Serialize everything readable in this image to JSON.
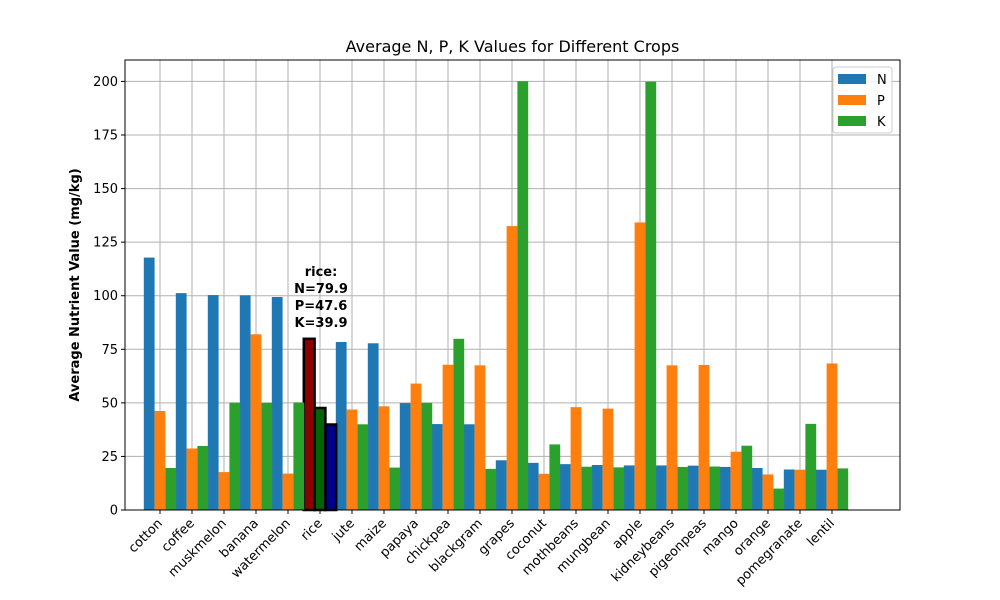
{
  "chart_data": {
    "type": "bar",
    "title": "Average N, P, K Values for Different Crops",
    "xlabel": "",
    "ylabel": "Average Nutrient Value (mg/kg)",
    "ylim": [
      0,
      210
    ],
    "yticks": [
      "0",
      "25",
      "50",
      "75",
      "100",
      "125",
      "150",
      "175",
      "200"
    ],
    "grid": true,
    "legend_position": "top-right",
    "categories": [
      "cotton",
      "coffee",
      "muskmelon",
      "banana",
      "watermelon",
      "rice",
      "jute",
      "maize",
      "papaya",
      "chickpea",
      "blackgram",
      "grapes",
      "coconut",
      "mothbeans",
      "mungbean",
      "apple",
      "kidneybeans",
      "pigeonpeas",
      "mango",
      "orange",
      "pomegranate",
      "lentil"
    ],
    "series": [
      {
        "name": "N",
        "color": "#1f77b4",
        "values": [
          117.8,
          101.2,
          100.3,
          100.2,
          99.4,
          79.9,
          78.4,
          77.8,
          49.9,
          40.1,
          40.0,
          23.2,
          22.0,
          21.4,
          21.0,
          20.8,
          20.8,
          20.7,
          20.1,
          19.6,
          18.9,
          18.8
        ]
      },
      {
        "name": "P",
        "color": "#ff7f0e",
        "values": [
          46.2,
          28.7,
          17.7,
          82.0,
          17.0,
          47.6,
          46.9,
          48.4,
          59.0,
          67.8,
          67.5,
          132.5,
          16.9,
          48.0,
          47.3,
          134.2,
          67.5,
          67.7,
          27.2,
          16.6,
          18.8,
          68.4
        ]
      },
      {
        "name": "K",
        "color": "#2ca02c",
        "values": [
          19.6,
          29.9,
          50.1,
          50.0,
          50.2,
          39.9,
          40.0,
          19.8,
          50.0,
          79.9,
          19.2,
          200.1,
          30.6,
          20.2,
          19.9,
          199.9,
          20.1,
          20.3,
          30.0,
          10.0,
          40.2,
          19.4
        ]
      }
    ],
    "highlight": {
      "category": "rice",
      "colors": [
        "#8b0000",
        "#006400",
        "#00008b"
      ],
      "label_lines": [
        "rice:",
        "N=79.9",
        "P=47.6",
        "K=39.9"
      ]
    }
  }
}
